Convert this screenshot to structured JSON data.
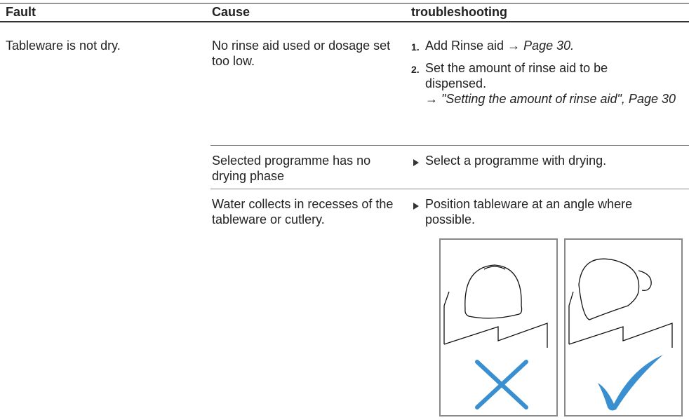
{
  "table": {
    "header": [
      "Fault",
      "Cause",
      "troubleshooting"
    ],
    "rows": [
      {
        "fault": "Tableware is not dry.",
        "cause": "No rinse aid used or dosage set too low.",
        "steps": [
          {
            "number": "1.",
            "text": "Add Rinse aid →",
            "ref": "Page 30."
          },
          {
            "number": "2.",
            "text": "Set the amount of rinse aid to be dispensed.",
            "ref": "→ \"Setting the amount of rinse aid\", Page 30"
          }
        ]
      },
      {
        "cause": "Selected programme has no drying phase",
        "action": "Select a programme with drying."
      },
      {
        "cause": "Water collects in recesses of the tableware or cutlery.",
        "action": "Position tableware at an angle where possible."
      }
    ]
  }
}
